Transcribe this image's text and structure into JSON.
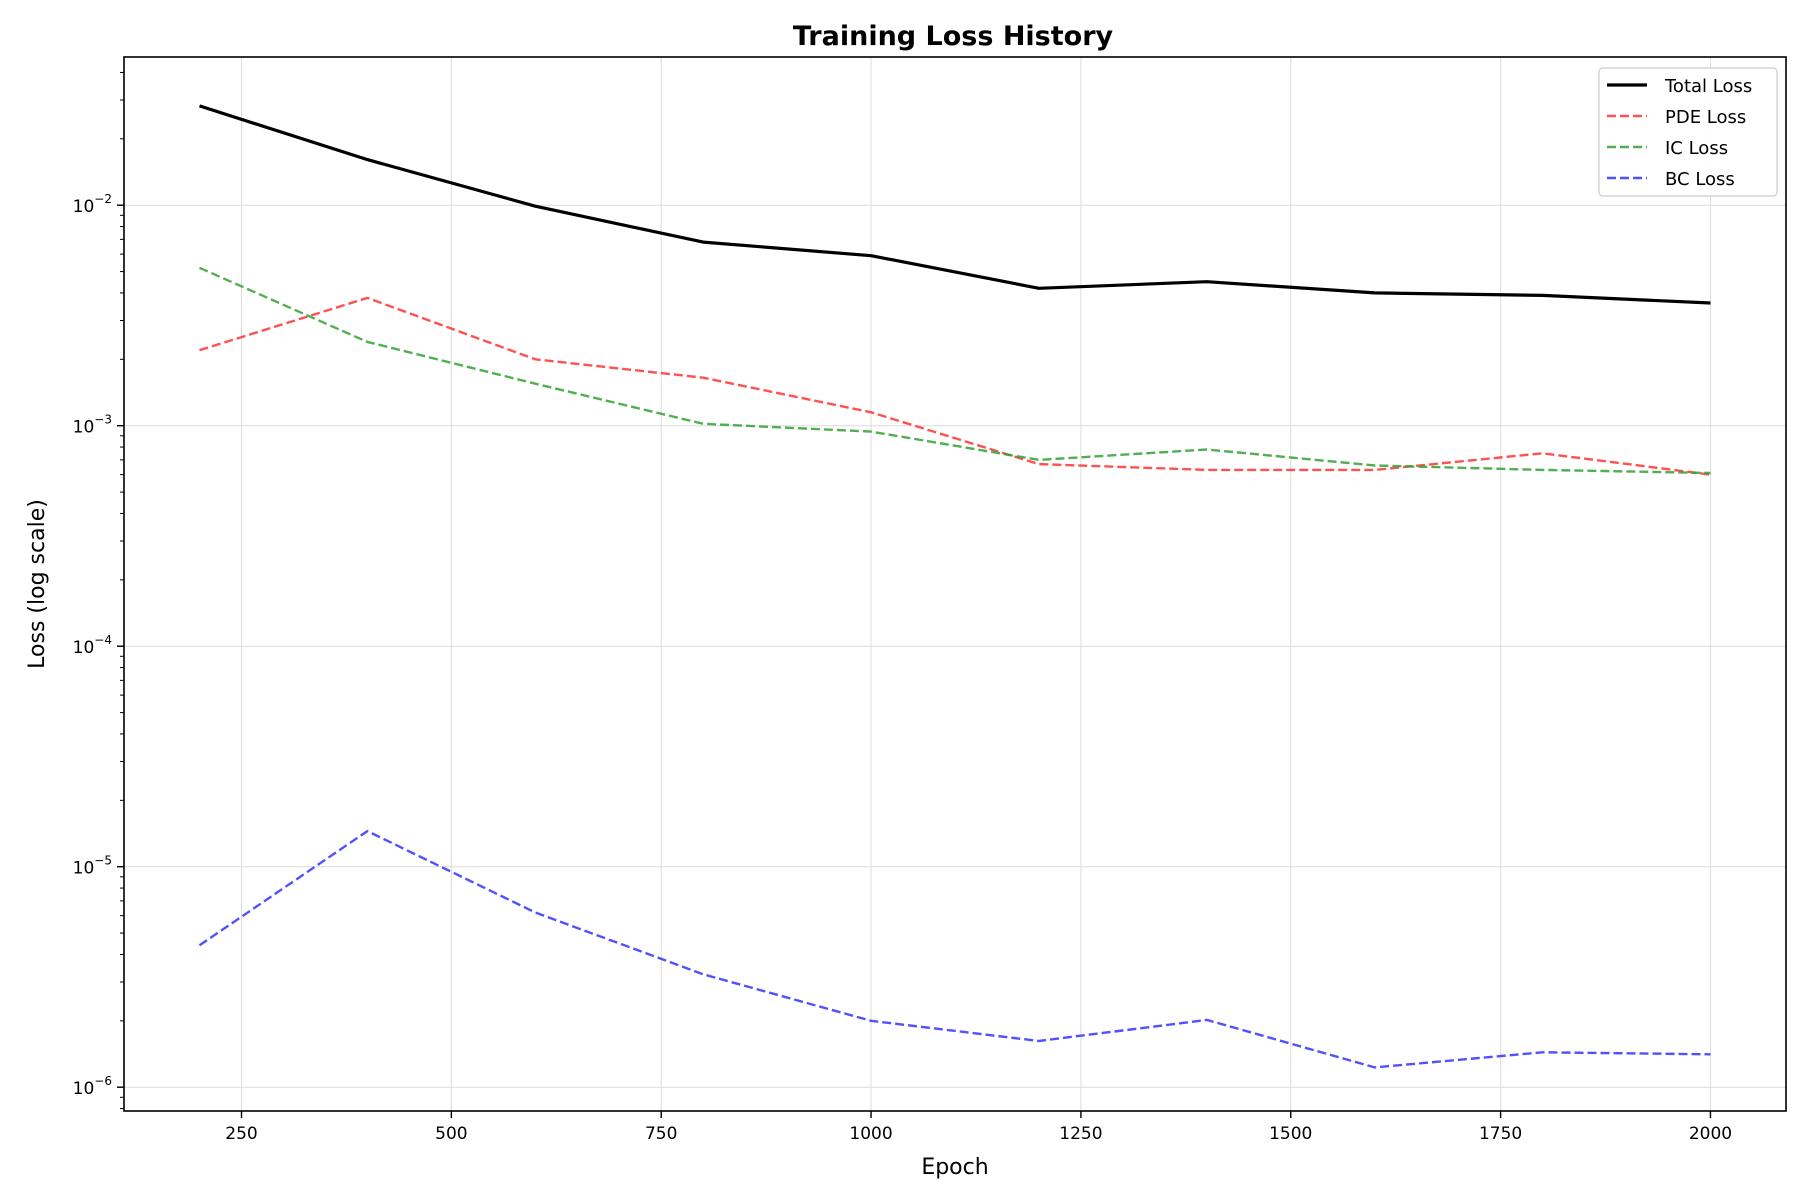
{
  "chart_data": {
    "type": "line",
    "title": "Training Loss History",
    "xlabel": "Epoch",
    "ylabel": "Loss (log scale)",
    "yscale": "log",
    "grid": true,
    "legend_position": "top-right",
    "xlim": [
      110,
      2090
    ],
    "ylim": [
      7.8e-07,
      0.047
    ],
    "xticks": [
      250,
      500,
      750,
      1000,
      1250,
      1500,
      1750,
      2000
    ],
    "xtick_labels": [
      "250",
      "500",
      "750",
      "1000",
      "1250",
      "1500",
      "1750",
      "2000"
    ],
    "yticks": [
      1e-06,
      1e-05,
      0.0001,
      0.001,
      0.01
    ],
    "ytick_labels": [
      {
        "base": "10",
        "exp": "−6"
      },
      {
        "base": "10",
        "exp": "−5"
      },
      {
        "base": "10",
        "exp": "−4"
      },
      {
        "base": "10",
        "exp": "−3"
      },
      {
        "base": "10",
        "exp": "−2"
      }
    ],
    "x": [
      200,
      400,
      600,
      800,
      1000,
      1200,
      1400,
      1600,
      1800,
      2000
    ],
    "series": [
      {
        "name": "Total Loss",
        "color": "#000000",
        "style": "solid",
        "width": 3.2,
        "values": [
          0.0282,
          0.0161,
          0.0099,
          0.0068,
          0.0059,
          0.0042,
          0.0045,
          0.004,
          0.0039,
          0.0036
        ]
      },
      {
        "name": "PDE Loss",
        "color": "#ff3333",
        "style": "dashed",
        "width": 2.4,
        "values": [
          0.0022,
          0.0038,
          0.002,
          0.00165,
          0.00115,
          0.00067,
          0.00063,
          0.00063,
          0.00075,
          0.0006
        ]
      },
      {
        "name": "IC Loss",
        "color": "#33a033",
        "style": "dashed",
        "width": 2.4,
        "values": [
          0.0052,
          0.0024,
          0.00155,
          0.00102,
          0.00094,
          0.0007,
          0.00078,
          0.00066,
          0.00063,
          0.00061
        ]
      },
      {
        "name": "BC Loss",
        "color": "#3333ff",
        "style": "dashed",
        "width": 2.4,
        "values": [
          4.4e-06,
          1.45e-05,
          6.2e-06,
          3.25e-06,
          2e-06,
          1.62e-06,
          2.02e-06,
          1.23e-06,
          1.44e-06,
          1.41e-06
        ]
      }
    ]
  }
}
